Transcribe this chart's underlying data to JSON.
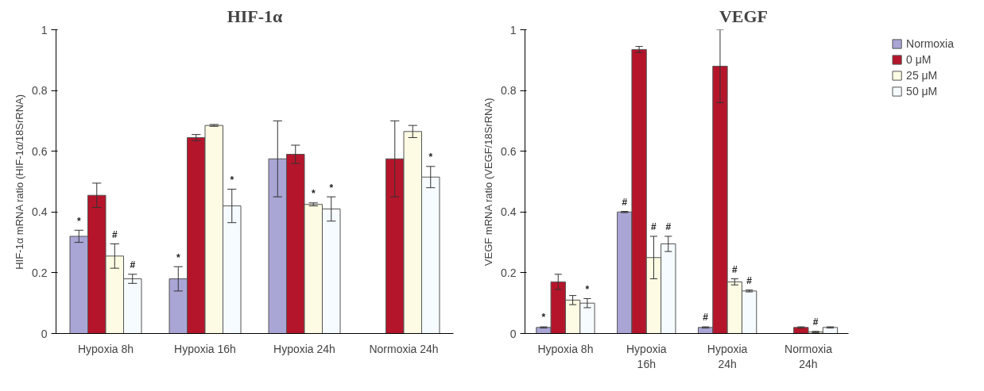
{
  "chart_data": [
    {
      "type": "bar",
      "title": "HIF-1α",
      "ylabel": "HIF-1α mRNA ratio (HIF-1α/18SrRNA)",
      "categories": [
        "Hypoxia 8h",
        "Hypoxia 16h",
        "Hypoxia 24h",
        "Normoxia 24h"
      ],
      "ylim": [
        0,
        1
      ],
      "yticks": [
        0,
        0.2,
        0.4,
        0.6,
        0.8,
        1
      ],
      "grid": false,
      "legend": false,
      "series": [
        {
          "color": "#a9a6d6",
          "values": [
            0.32,
            0.18,
            0.575,
            null
          ],
          "errors": [
            0.02,
            0.04,
            0.125,
            null
          ],
          "value_labels": [
            "*",
            "*",
            null,
            null
          ]
        },
        {
          "color": "#b5152b",
          "values": [
            0.455,
            0.645,
            0.59,
            0.575
          ],
          "errors": [
            0.04,
            0.01,
            0.03,
            0.125
          ],
          "value_labels": [
            null,
            null,
            null,
            null
          ]
        },
        {
          "color": "#fdfbe3",
          "values": [
            0.255,
            0.685,
            0.425,
            0.665
          ],
          "errors": [
            0.04,
            0.003,
            0.005,
            0.02
          ],
          "value_labels": [
            "#",
            null,
            "*",
            null
          ]
        },
        {
          "color": "#f6fbff",
          "values": [
            0.18,
            0.42,
            0.41,
            0.515
          ],
          "errors": [
            0.015,
            0.055,
            0.04,
            0.035
          ],
          "value_labels": [
            "#",
            "*",
            "*",
            "*"
          ]
        }
      ]
    },
    {
      "type": "bar",
      "title": "VEGF",
      "ylabel": "VEGF mRNA ratio (VEGF/18SrRNA)",
      "categories": [
        "Hypoxia 8h",
        "Hypoxia\n16h",
        "Hypoxia\n24h",
        "Normoxia\n24h"
      ],
      "ylim": [
        0,
        1
      ],
      "yticks": [
        0,
        0.2,
        0.4,
        0.6,
        0.8,
        1
      ],
      "grid": false,
      "legend": "top right",
      "series": [
        {
          "name": "Normoxia",
          "color": "#a9a6d6",
          "values": [
            0.02,
            0.4,
            0.02,
            null
          ],
          "errors": [
            0.002,
            0.002,
            0.002,
            null
          ],
          "value_labels": [
            "*",
            "#",
            "#",
            null
          ]
        },
        {
          "name": "0 μM",
          "color": "#b5152b",
          "values": [
            0.17,
            0.935,
            0.88,
            0.02
          ],
          "errors": [
            0.025,
            0.01,
            0.12,
            0.002
          ],
          "value_labels": [
            null,
            null,
            null,
            null
          ]
        },
        {
          "name": "25 μM",
          "color": "#fdfbe3",
          "values": [
            0.11,
            0.25,
            0.17,
            0.005
          ],
          "errors": [
            0.015,
            0.07,
            0.01,
            0.002
          ],
          "value_labels": [
            null,
            "#",
            "#",
            "#"
          ]
        },
        {
          "name": "50 μM",
          "color": "#f6fbff",
          "values": [
            0.1,
            0.295,
            0.14,
            0.02
          ],
          "errors": [
            0.015,
            0.025,
            0.003,
            0.002
          ],
          "value_labels": [
            "*",
            "#",
            "#",
            null
          ]
        }
      ]
    }
  ]
}
